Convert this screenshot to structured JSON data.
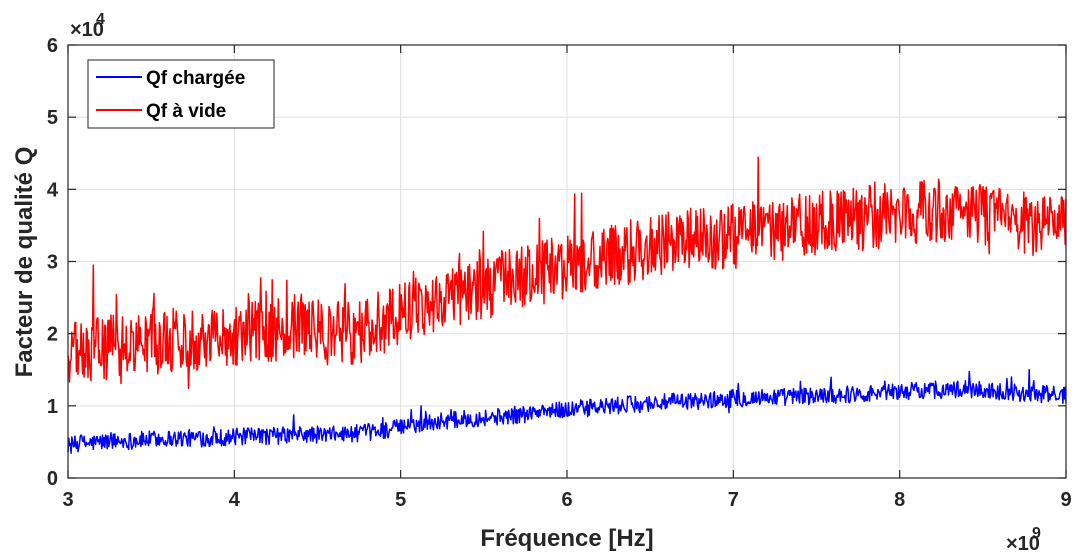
{
  "chart_data": {
    "type": "line",
    "title": "",
    "xlabel": "Fréquence [Hz]",
    "ylabel": "Facteur de qualité Q",
    "x_exponent_base": "×10",
    "x_exponent_power": "9",
    "y_exponent_base": "×10",
    "y_exponent_power": "4",
    "xlim": [
      3,
      9
    ],
    "ylim": [
      0,
      6
    ],
    "x_unit_multiplier": 1000000000,
    "y_unit_multiplier": 10000,
    "xticks": [
      "3",
      "4",
      "5",
      "6",
      "7",
      "8",
      "9"
    ],
    "yticks": [
      "0",
      "1",
      "2",
      "3",
      "4",
      "5",
      "6"
    ],
    "grid": true,
    "legend_position": "top-left",
    "x": [
      3.0,
      3.2,
      3.4,
      3.6,
      3.8,
      4.0,
      4.2,
      4.4,
      4.6,
      4.8,
      5.0,
      5.2,
      5.4,
      5.6,
      5.8,
      6.0,
      6.2,
      6.4,
      6.6,
      6.8,
      7.0,
      7.2,
      7.4,
      7.6,
      7.8,
      8.0,
      8.2,
      8.4,
      8.6,
      8.8,
      9.0
    ],
    "series": [
      {
        "name": "Qf chargée",
        "color": "#0000ff",
        "values": [
          0.45,
          0.5,
          0.52,
          0.55,
          0.55,
          0.57,
          0.58,
          0.6,
          0.6,
          0.63,
          0.7,
          0.78,
          0.82,
          0.85,
          0.9,
          0.95,
          0.98,
          1.02,
          1.05,
          1.07,
          1.1,
          1.12,
          1.13,
          1.15,
          1.17,
          1.2,
          1.22,
          1.23,
          1.2,
          1.17,
          1.15
        ],
        "approx_noise": 0.12
      },
      {
        "name": "Qf à vide",
        "color": "#ff0000",
        "values": [
          1.7,
          1.8,
          1.85,
          1.9,
          1.95,
          2.0,
          2.05,
          2.1,
          2.0,
          2.05,
          2.3,
          2.45,
          2.6,
          2.7,
          2.8,
          2.95,
          3.0,
          3.15,
          3.25,
          3.3,
          3.35,
          3.4,
          3.5,
          3.55,
          3.6,
          3.65,
          3.7,
          3.7,
          3.6,
          3.5,
          3.45
        ],
        "approx_noise": 0.45
      }
    ]
  }
}
